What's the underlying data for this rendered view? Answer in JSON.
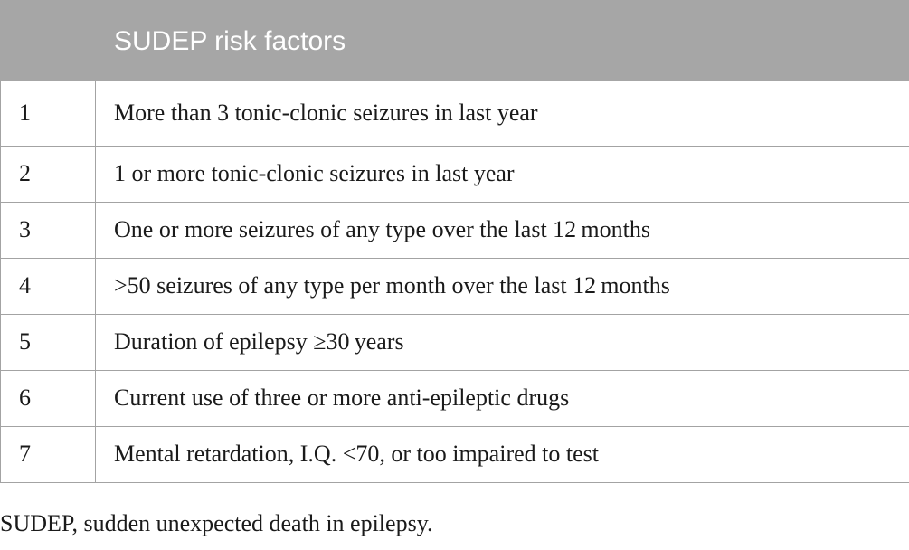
{
  "table": {
    "headers": [
      "",
      "SUDEP risk factors"
    ],
    "rows": [
      {
        "num": "1",
        "text": "More than 3 tonic-clonic seizures in last year"
      },
      {
        "num": "2",
        "text": "1 or more tonic-clonic seizures in last year"
      },
      {
        "num": "3",
        "text": "One or more seizures of any type over the last 12 months"
      },
      {
        "num": "4",
        "text": ">50 seizures of any type per month over the last 12 months"
      },
      {
        "num": "5",
        "text": "Duration of epilepsy ≥30 years"
      },
      {
        "num": "6",
        "text": "Current use of three or more anti-epileptic drugs"
      },
      {
        "num": "7",
        "text": "Mental retardation, I.Q. <70, or too impaired to test"
      }
    ]
  },
  "footnote": "SUDEP, sudden unexpected death in epilepsy.",
  "colors": {
    "header_bg": "#a6a6a6",
    "header_text": "#ffffff",
    "border": "#a3a3a3"
  }
}
